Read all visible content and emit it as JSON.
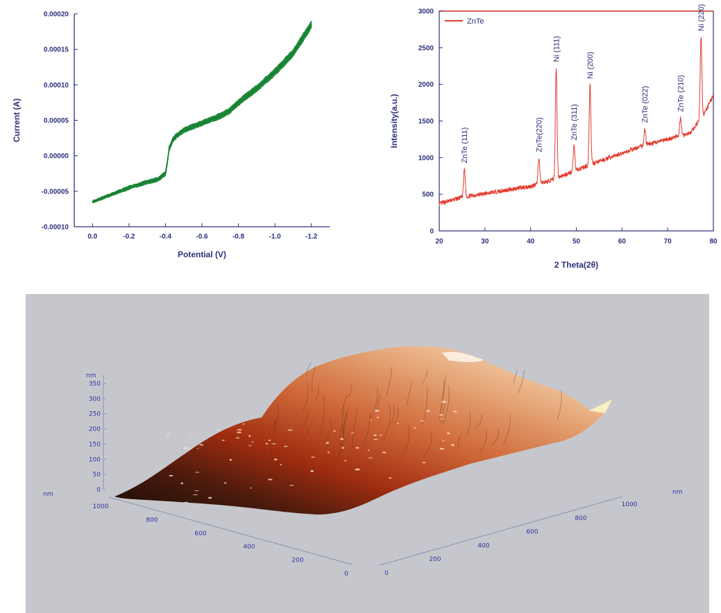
{
  "chart_data": [
    {
      "type": "line",
      "xlabel": "Potential (V)",
      "ylabel": "Current (A)",
      "x_tick_labels": [
        "0.0",
        "-0.2",
        "-0.4",
        "-0.6",
        "-0.8",
        "-1.0",
        "-1.2"
      ],
      "y_tick_labels": [
        "-0.00010",
        "-0.00005",
        "0.00000",
        "0.00005",
        "0.00010",
        "0.00015",
        "0.00020"
      ],
      "xlim": [
        0.1,
        -1.3
      ],
      "ylim": [
        -0.0001,
        0.0002
      ],
      "grid": false,
      "line_color": "#1e8a3a",
      "series": [
        {
          "x": [
            0.0,
            -0.1,
            -0.2,
            -0.3,
            -0.36,
            -0.4,
            -0.41,
            -0.42,
            -0.44,
            -0.46,
            -0.5,
            -0.6,
            -0.7,
            -0.75,
            -0.8,
            -0.9,
            -1.0,
            -1.1,
            -1.2
          ],
          "y": [
            -6.5e-05,
            -5.5e-05,
            -4.5e-05,
            -3.7e-05,
            -3.3e-05,
            -2.5e-05,
            -1e-05,
            1e-05,
            2.2e-05,
            2.8e-05,
            3.6e-05,
            4.6e-05,
            5.6e-05,
            6.3e-05,
            7.5e-05,
            9.5e-05,
            0.000118,
            0.000145,
            0.000185
          ]
        }
      ]
    },
    {
      "type": "line",
      "xlabel": "2 Theta(2θ)",
      "ylabel": "Intensity(a.u.)",
      "x_tick_labels": [
        "20",
        "30",
        "40",
        "50",
        "60",
        "70",
        "80"
      ],
      "y_tick_labels": [
        "0",
        "500",
        "1000",
        "1500",
        "2000",
        "2500",
        "3000"
      ],
      "xlim": [
        20,
        80
      ],
      "ylim": [
        0,
        3000
      ],
      "grid": false,
      "line_color": "#e23a2c",
      "legend": {
        "position": "top-left",
        "entries": [
          "ZnTe"
        ]
      },
      "peak_labels": [
        "ZnTe (111)",
        "ZnTe(220)",
        "Ni (111)",
        "ZnTe (311)",
        "Ni (200)",
        "ZnTe (022)",
        "ZnTe (210)",
        "Ni (220)"
      ],
      "peaks": [
        {
          "x": 25.5,
          "y": 850
        },
        {
          "x": 41.8,
          "y": 1000
        },
        {
          "x": 45.6,
          "y": 2230
        },
        {
          "x": 49.5,
          "y": 1160
        },
        {
          "x": 53.0,
          "y": 2000
        },
        {
          "x": 65.0,
          "y": 1400
        },
        {
          "x": 72.8,
          "y": 1550
        },
        {
          "x": 77.3,
          "y": 2650
        }
      ],
      "series": [
        {
          "name": "ZnTe",
          "x": [
            20,
            25,
            30,
            35,
            40,
            45,
            50,
            55,
            60,
            65,
            70,
            75,
            78,
            80
          ],
          "y": [
            370,
            460,
            510,
            560,
            610,
            700,
            830,
            950,
            1060,
            1170,
            1250,
            1340,
            1600,
            1850
          ]
        }
      ]
    },
    {
      "type": "other",
      "z_unit": "nm",
      "x_unit": "nm",
      "y_unit": "nm",
      "z_tick_labels": [
        "0",
        "50",
        "100",
        "150",
        "200",
        "250",
        "300",
        "350"
      ],
      "left_axis_tick_labels": [
        "1000",
        "800",
        "600",
        "400",
        "200",
        "0"
      ],
      "right_axis_tick_labels": [
        "0",
        "200",
        "400",
        "600",
        "800",
        "1000"
      ]
    }
  ]
}
